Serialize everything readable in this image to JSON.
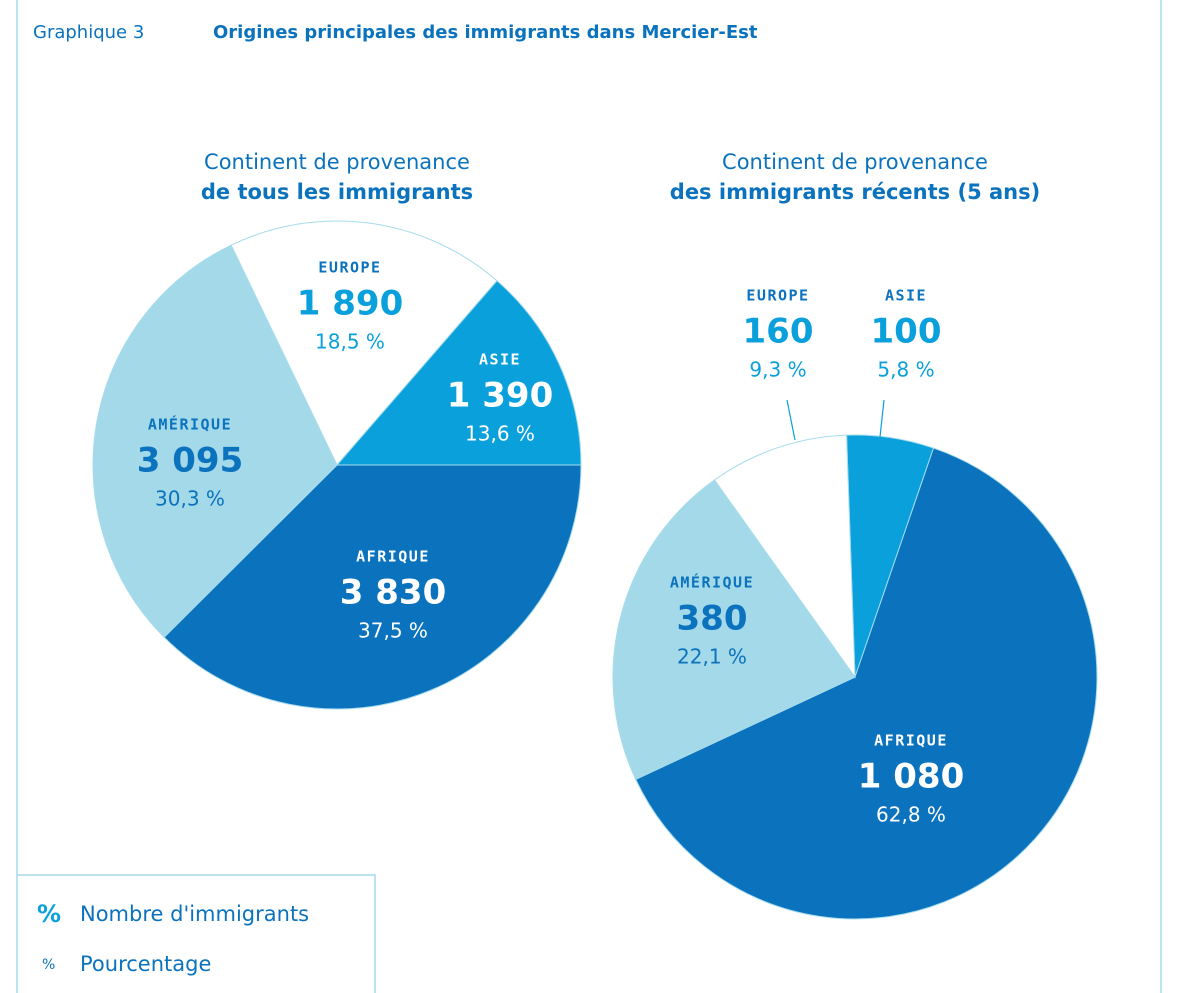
{
  "header": {
    "label": "Graphique 3",
    "title": "Origines principales des immigrants dans Mercier-Est"
  },
  "chart_data": [
    {
      "type": "pie",
      "title": "Continent de provenance",
      "subtitle": "de tous les immigrants",
      "categories": [
        "AFRIQUE",
        "AMÉRIQUE",
        "EUROPE",
        "ASIE"
      ],
      "values": [
        3830,
        3095,
        1890,
        1390
      ],
      "value_labels": [
        "3 830",
        "3 095",
        "1 890",
        "1 390"
      ],
      "percents": [
        37.5,
        30.3,
        18.5,
        13.6
      ],
      "percent_labels": [
        "37,5 %",
        "30,3 %",
        "18,5 %",
        "13,6 %"
      ],
      "colors": [
        "#0b72bd",
        "#a3d9e8",
        "#ffffff",
        "#0aa0dc"
      ]
    },
    {
      "type": "pie",
      "title": "Continent de provenance",
      "subtitle": "des immigrants récents (5 ans)",
      "categories": [
        "ASIE",
        "AFRIQUE",
        "AMÉRIQUE",
        "EUROPE"
      ],
      "values": [
        100,
        1080,
        380,
        160
      ],
      "value_labels": [
        "100",
        "1 080",
        "380",
        "160"
      ],
      "percents": [
        5.8,
        62.8,
        22.1,
        9.3
      ],
      "percent_labels": [
        "5,8 %",
        "62,8 %",
        "22,1 %",
        "9,3 %"
      ],
      "colors": [
        "#0aa0dc",
        "#0b72bd",
        "#a3d9e8",
        "#ffffff"
      ]
    }
  ],
  "legend": [
    {
      "symbol": "%",
      "label": "Nombre d'immigrants"
    },
    {
      "symbol": "%",
      "label": "Pourcentage"
    }
  ]
}
